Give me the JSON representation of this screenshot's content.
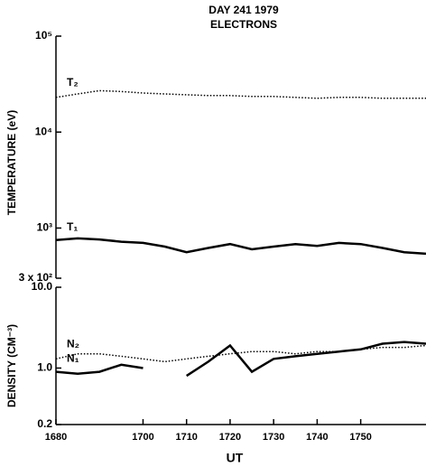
{
  "chart_data": [
    {
      "type": "line",
      "title": "DAY 241 1979",
      "subtitle": "ELECTRONS",
      "y_label": "TEMPERATURE (eV)",
      "log_y": true,
      "xlim": [
        1680,
        1765
      ],
      "ylim": [
        300,
        100000
      ],
      "yticks": [
        {
          "value": 300,
          "label": "3 x 10²"
        },
        {
          "value": 1000,
          "label": "10³"
        },
        {
          "value": 10000,
          "label": "10⁴"
        },
        {
          "value": 100000,
          "label": "10⁵"
        }
      ],
      "x": [
        1680,
        1685,
        1690,
        1695,
        1700,
        1705,
        1710,
        1715,
        1720,
        1725,
        1730,
        1735,
        1740,
        1745,
        1750,
        1755,
        1760,
        1765
      ],
      "series": [
        {
          "name": "T₂",
          "color": "#000000",
          "dotted": true,
          "values": [
            23000,
            25000,
            27000,
            26500,
            25500,
            25000,
            24500,
            24000,
            24000,
            23500,
            23500,
            23000,
            22500,
            23000,
            23000,
            22500,
            22500,
            22500
          ]
        },
        {
          "name": "T₁",
          "color": "#000000",
          "dotted": false,
          "values": [
            750,
            780,
            760,
            720,
            700,
            640,
            560,
            620,
            680,
            600,
            640,
            680,
            650,
            700,
            680,
            620,
            560,
            540
          ]
        }
      ]
    },
    {
      "type": "line",
      "x_label": "UT",
      "y_label": "DENSITY (CM⁻³)",
      "log_y": true,
      "xlim": [
        1680,
        1765
      ],
      "ylim": [
        0.2,
        10
      ],
      "yticks": [
        {
          "value": 0.2,
          "label": "0.2"
        },
        {
          "value": 1,
          "label": "1.0"
        },
        {
          "value": 10,
          "label": "10.0"
        }
      ],
      "xticks": [
        1680,
        1700,
        1710,
        1720,
        1730,
        1740,
        1750
      ],
      "x": [
        1680,
        1685,
        1690,
        1695,
        1700,
        1705,
        1710,
        1715,
        1720,
        1725,
        1730,
        1735,
        1740,
        1745,
        1750,
        1755,
        1760,
        1765
      ],
      "series": [
        {
          "name": "N₂",
          "color": "#000000",
          "dotted": true,
          "values": [
            1.3,
            1.5,
            1.5,
            1.4,
            1.3,
            1.2,
            1.3,
            1.4,
            1.5,
            1.6,
            1.6,
            1.5,
            1.6,
            1.6,
            1.7,
            1.8,
            1.8,
            1.9
          ]
        },
        {
          "name": "N₁",
          "color": "#000000",
          "dotted": false,
          "values": [
            0.9,
            0.85,
            0.9,
            1.1,
            1.0,
            null,
            0.8,
            1.2,
            1.9,
            0.9,
            1.3,
            1.4,
            1.5,
            1.6,
            1.7,
            2.0,
            2.1,
            2.0
          ]
        }
      ]
    }
  ]
}
